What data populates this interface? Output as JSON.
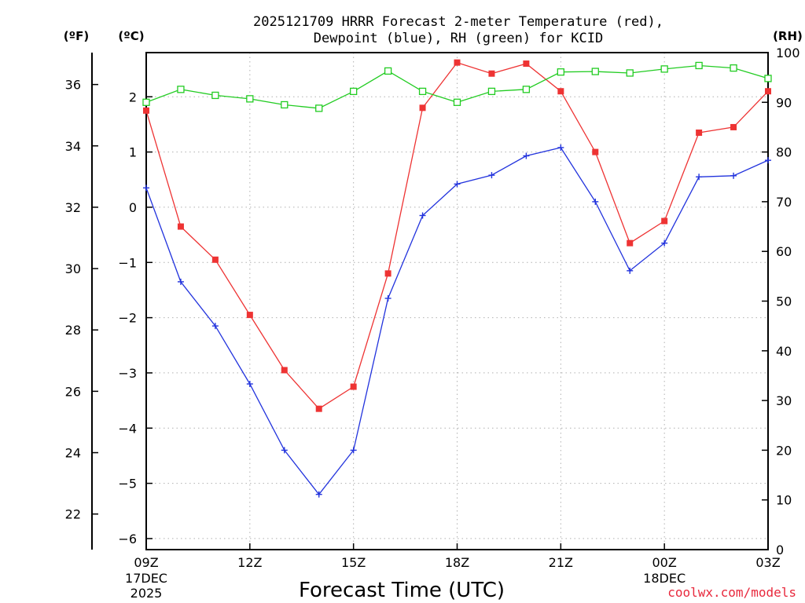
{
  "chart_data": {
    "type": "line",
    "title": [
      "2025121709 HRRR Forecast 2-meter Temperature (red),",
      "Dewpoint (blue), RH (green) for KCID"
    ],
    "xlabel": "Forecast Time (UTC)",
    "x_ticks": [
      {
        "hour": 0,
        "label": "09Z",
        "sub": [
          "17DEC",
          "2025"
        ]
      },
      {
        "hour": 3,
        "label": "12Z",
        "sub": []
      },
      {
        "hour": 6,
        "label": "15Z",
        "sub": []
      },
      {
        "hour": 9,
        "label": "18Z",
        "sub": []
      },
      {
        "hour": 12,
        "label": "21Z",
        "sub": []
      },
      {
        "hour": 15,
        "label": "00Z",
        "sub": [
          "18DEC"
        ]
      },
      {
        "hour": 18,
        "label": "03Z",
        "sub": []
      }
    ],
    "xlim": [
      0,
      18
    ],
    "units": {
      "fahrenheit": "(ºF)",
      "celsius": "(ºC)",
      "rh": "(RH)"
    },
    "fahrenheit_axis": {
      "ticks": [
        22,
        24,
        26,
        28,
        30,
        32,
        34,
        36
      ]
    },
    "celsius_axis": {
      "ticks": [
        -6,
        -5,
        -4,
        -3,
        -2,
        -1,
        0,
        1,
        2
      ],
      "labels": [
        "−6",
        "−5",
        "−4",
        "−3",
        "−2",
        "−1",
        "0",
        "1",
        "2"
      ],
      "lim": [
        -6.2,
        2.8
      ]
    },
    "rh_axis": {
      "ticks": [
        0,
        10,
        20,
        30,
        40,
        50,
        60,
        70,
        80,
        90,
        100
      ],
      "lim": [
        0,
        100
      ]
    },
    "hours": [
      0,
      1,
      2,
      3,
      4,
      5,
      6,
      7,
      8,
      9,
      10,
      11,
      12,
      13,
      14,
      15,
      16,
      17,
      18
    ],
    "series": [
      {
        "name": "Temperature",
        "axis": "celsius",
        "color": "#ee3333",
        "marker": "filled-square",
        "values": [
          1.75,
          -0.35,
          -0.95,
          -1.95,
          -2.95,
          -3.65,
          -3.25,
          -1.2,
          1.8,
          2.62,
          2.42,
          2.6,
          2.1,
          1.0,
          -0.65,
          -0.25,
          1.35,
          1.45,
          2.1
        ]
      },
      {
        "name": "Dewpoint",
        "axis": "celsius",
        "color": "#2233dd",
        "marker": "plus",
        "values": [
          0.35,
          -1.35,
          -2.15,
          -3.2,
          -4.4,
          -5.2,
          -4.4,
          -1.65,
          -0.15,
          0.42,
          0.58,
          0.93,
          1.08,
          0.1,
          -1.15,
          -0.65,
          0.55,
          0.57,
          0.85
        ]
      },
      {
        "name": "RH",
        "axis": "rh",
        "color": "#22cc22",
        "marker": "hollow-square",
        "values": [
          90,
          92.6,
          91.4,
          90.7,
          89.5,
          88.8,
          92.2,
          96.3,
          92.2,
          90.0,
          92.2,
          92.6,
          96.1,
          96.2,
          95.9,
          96.7,
          97.4,
          96.9,
          94.8
        ]
      }
    ],
    "grid": true,
    "credit": "coolwx.com/models"
  }
}
